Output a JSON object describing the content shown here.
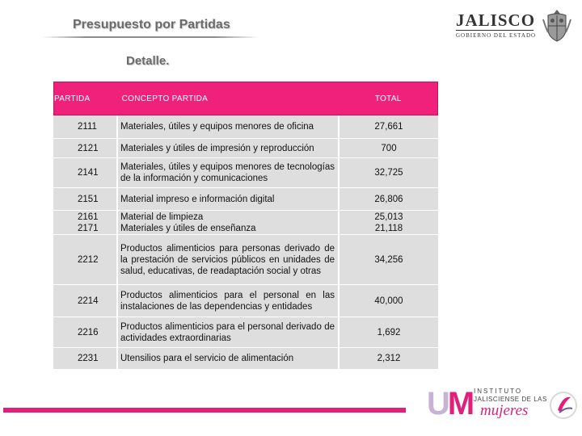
{
  "header": {
    "title": "Presupuesto por Partidas",
    "subtitle": "Detalle."
  },
  "logo_jalisco": {
    "word": "JALISCO",
    "sub": "GOBIERNO DEL ESTADO"
  },
  "table": {
    "headers": [
      "PARTIDA",
      "CONCEPTO PARTIDA",
      "TOTAL"
    ],
    "rows": [
      {
        "partida": [
          "2111"
        ],
        "concepto": "Materiales, útiles y equipos menores de oficina",
        "total": [
          "27,661"
        ]
      },
      {
        "partida": [
          "2121"
        ],
        "concepto": "Materiales y útiles de impresión y reproducción",
        "total": [
          "700"
        ]
      },
      {
        "partida": [
          "2141"
        ],
        "concepto": "Materiales, útiles y equipos menores de tecnologías de la información y comunicaciones",
        "total": [
          "32,725"
        ]
      },
      {
        "partida": [
          "2151"
        ],
        "concepto": "Material impreso e información digital",
        "total": [
          "26,806"
        ]
      },
      {
        "partida": [
          "2161",
          "2171"
        ],
        "concepto": "Material de limpieza\nMateriales y útiles de enseñanza",
        "total": [
          "25,013",
          "21,118"
        ]
      },
      {
        "partida": [
          "2212"
        ],
        "concepto": "Productos alimenticios para personas derivado de la prestación de servicios públicos en unidades de salud, educativas, de readaptación social y otras",
        "total": [
          "34,256"
        ]
      },
      {
        "partida": [
          "2214"
        ],
        "concepto": "Productos alimenticios para el personal en las instalaciones de las dependencias y entidades",
        "total": [
          "40,000"
        ]
      },
      {
        "partida": [
          "2216"
        ],
        "concepto": "Productos alimenticios para el personal derivado de actividades extraordinarias",
        "total": [
          "1,692"
        ]
      },
      {
        "partida": [
          "2231"
        ],
        "concepto": "Utensilios para el servicio de alimentación",
        "total": [
          "2,312"
        ]
      }
    ]
  },
  "logo_ijm": {
    "mark_u": "U",
    "mark_m": "M",
    "line1": "INSTITUTO",
    "line2": "JALISCIENSE DE LAS",
    "line3": "mujeres"
  },
  "colors": {
    "accent": "#f0217a",
    "row_bg": "#dedede",
    "title_gray": "#6b6b6b"
  }
}
